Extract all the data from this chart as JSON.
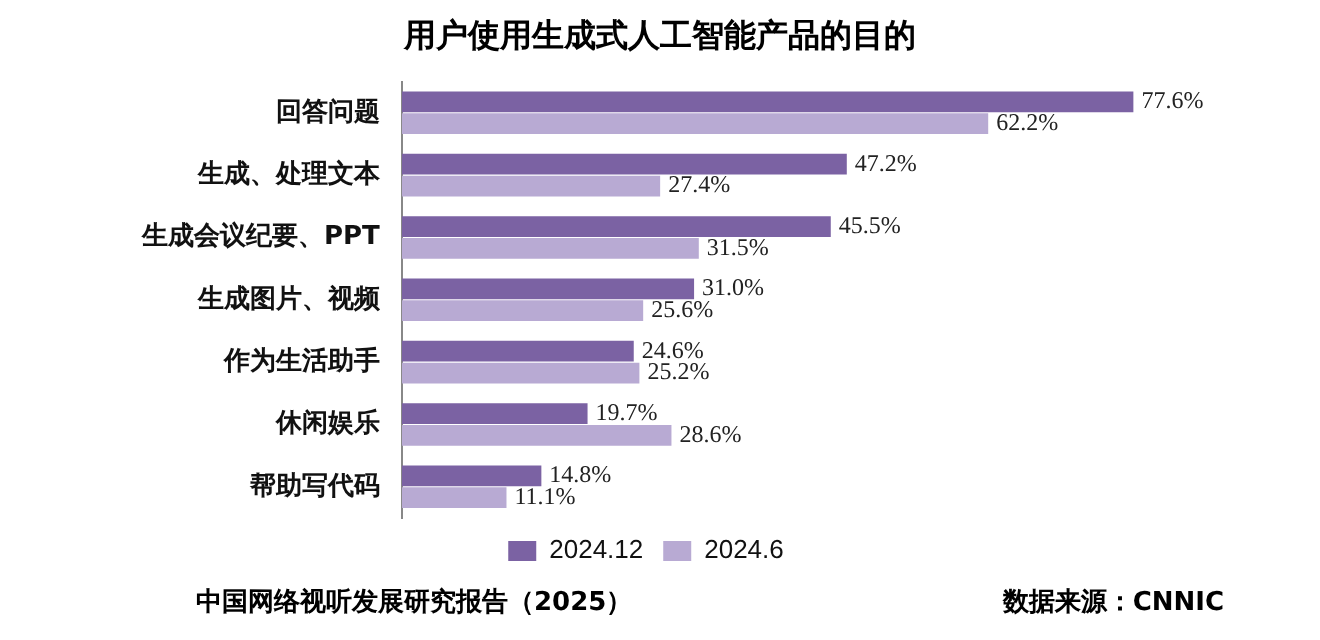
{
  "chart_data": {
    "type": "bar",
    "orientation": "horizontal",
    "title": "用户使用生成式人工智能产品的目的",
    "categories": [
      "回答问题",
      "生成、处理文本",
      "生成会议纪要、PPT",
      "生成图片、视频",
      "作为生活助手",
      "休闲娱乐",
      "帮助写代码"
    ],
    "series": [
      {
        "name": "2024.12",
        "color": "#7b62a3",
        "values": [
          77.6,
          47.2,
          45.5,
          31.0,
          24.6,
          19.7,
          14.8
        ],
        "value_labels": [
          "77.6%",
          "47.2%",
          "45.5%",
          "31.0%",
          "24.6%",
          "19.7%",
          "14.8%"
        ]
      },
      {
        "name": "2024.6",
        "color": "#b8aad3",
        "values": [
          62.2,
          27.4,
          31.5,
          25.6,
          25.2,
          28.6,
          11.1
        ],
        "value_labels": [
          "62.2%",
          "27.4%",
          "31.5%",
          "25.6%",
          "25.2%",
          "28.6%",
          "11.1%"
        ]
      }
    ],
    "legend": "bottom",
    "annotations": [
      "中国网络视听发展研究报告（2025）",
      "数据来源：CNNIC"
    ]
  }
}
